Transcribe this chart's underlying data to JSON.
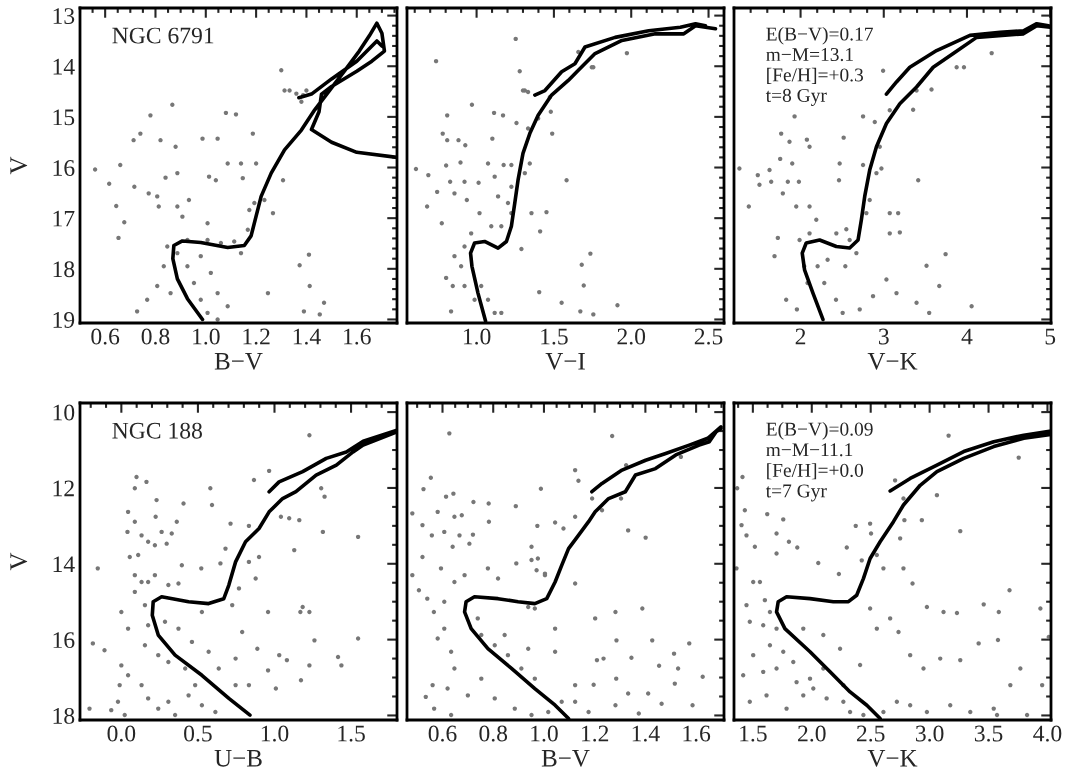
{
  "chart_data": [
    {
      "type": "scatter",
      "xlabel": "B−V",
      "ylabel": "V",
      "xlim": [
        0.5,
        1.76
      ],
      "ylim": [
        19.07,
        12.85
      ],
      "xticks": [
        0.6,
        0.8,
        {
          "value": 1,
          "label": "1.0"
        },
        1.2,
        1.4,
        1.6
      ],
      "yticks": [
        13,
        14,
        15,
        16,
        17,
        18,
        19
      ],
      "annotations": [
        "NGC 6791"
      ],
      "series": [
        {
          "type": "scatter",
          "color": "#777777",
          "marker": "circle",
          "x": [
            0.56,
            0.616,
            0.66,
            0.644,
            0.653,
            0.676,
            0.713,
            0.716,
            0.74,
            0.78,
            0.773,
            0.82,
            0.813,
            0.867,
            0.84,
            0.88,
            0.887,
            0.933,
            0.987,
            1.013,
            1.04,
            1.08,
            1.12,
            1.147,
            1.187,
            1.087,
            1.14,
            1.2,
            1.3,
            1.307,
            1.313,
            1.333,
            1.36,
            1.387,
            1.4,
            1.38,
            1.267,
            1.373,
            1.41,
            1.413,
            1.247,
            1.47,
            1.39,
            1.453,
            0.887,
            0.927,
            0.953,
            0.98,
            1.007,
            1.047,
            0.927,
            1.007,
            1.06,
            1.113,
            1.14,
            0.847,
            0.833,
            0.807,
            0.86,
            0.98,
            1.02,
            1.047,
            1.087,
            0.767,
            0.727,
            0.807,
            0.887,
            0.907,
            1.007,
            1.167,
            1.193,
            1.233,
            1.173,
            1.047
          ],
          "values": [
            16.04,
            16.32,
            15.95,
            16.76,
            17.39,
            17.08,
            15.46,
            16.38,
            15.33,
            14.97,
            16.51,
            15.46,
            16.77,
            14.76,
            16.2,
            15.59,
            16.11,
            16.64,
            15.43,
            16.18,
            16.25,
            14.92,
            14.95,
            16.21,
            15.33,
            15.92,
            15.92,
            15.92,
            14.08,
            16.25,
            14.48,
            14.48,
            14.54,
            14.57,
            14.48,
            14.7,
            16.9,
            17.93,
            17.72,
            18.34,
            18.48,
            18.67,
            18.84,
            18.9,
            17.69,
            17.95,
            18.28,
            18.61,
            18.87,
            19.0,
            17.43,
            17.43,
            17.49,
            17.46,
            17.69,
            17.56,
            17.95,
            18.34,
            18.48,
            17.75,
            18.08,
            18.48,
            18.74,
            18.61,
            18.84,
            16.57,
            16.77,
            16.97,
            17.1,
            17.23,
            16.7,
            16.64,
            16.84,
            15.43
          ]
        },
        {
          "type": "line",
          "color": "#000000",
          "marker": "none",
          "x": [
            0.987,
            0.927,
            0.887,
            0.869,
            0.873,
            0.907,
            0.98,
            1.087,
            1.153,
            1.18,
            1.2,
            1.22,
            1.26,
            1.313,
            1.38,
            1.433,
            1.493,
            1.553,
            1.61,
            1.65,
            1.68,
            1.7,
            1.71,
            1.66,
            1.6,
            1.5,
            1.46,
            1.45,
            1.42,
            1.5,
            1.6,
            1.76,
            null,
            1.37,
            1.42,
            1.5,
            1.6,
            1.68,
            1.7
          ],
          "values": [
            19.0,
            18.59,
            18.2,
            17.8,
            17.54,
            17.45,
            17.48,
            17.58,
            17.54,
            17.35,
            16.96,
            16.57,
            16.11,
            15.65,
            15.26,
            14.86,
            14.47,
            14.08,
            13.7,
            13.4,
            13.15,
            13.35,
            13.7,
            13.9,
            14.1,
            14.4,
            14.55,
            14.9,
            15.25,
            15.5,
            15.7,
            15.8,
            null,
            14.62,
            14.55,
            14.25,
            13.9,
            13.5,
            13.6
          ]
        }
      ]
    },
    {
      "type": "scatter",
      "xlabel": "V−I",
      "xlim": [
        0.55,
        2.6
      ],
      "ylim": [
        19.07,
        12.85
      ],
      "xticks": [
        {
          "value": 1,
          "label": "1.0"
        },
        1.5,
        {
          "value": 2,
          "label": "2.0"
        },
        2.5
      ],
      "yticks": [
        13,
        14,
        15,
        16,
        17,
        18,
        19
      ],
      "tick_labels": "x",
      "series": [
        {
          "type": "scatter",
          "color": "#777777",
          "marker": "circle",
          "x": [
            0.608,
            0.738,
            0.688,
            0.68,
            0.745,
            0.781,
            0.81,
            0.803,
            0.775,
            0.81,
            0.829,
            0.857,
            0.883,
            0.896,
            0.922,
            0.927,
            0.937,
            0.97,
            1.013,
            1.019,
            1.074,
            1.102,
            1.113,
            1.171,
            1.117,
            1.175,
            1.139,
            1.225,
            1.258,
            1.253,
            1.279,
            1.312,
            1.333,
            1.344,
            1.355,
            1.398,
            1.411,
            1.452,
            1.474,
            1.48,
            1.489,
            1.582,
            1.658,
            1.745,
            1.755,
            1.972,
            1.68,
            1.736,
            1.693,
            1.55,
            1.405,
            1.671,
            1.755,
            1.911,
            1.29,
            1.312,
            1.225,
            1.3,
            1.333,
            0.965,
            0.922,
            0.9,
            0.922,
            0.987,
            1.03,
            1.074,
            1.117,
            1.16,
            0.846,
            0.803,
            0.835,
            0.857,
            1.095,
            1.16,
            1.203,
            1.225
          ],
          "values": [
            16.03,
            13.9,
            16.15,
            16.77,
            16.48,
            15.33,
            14.97,
            15.96,
            17.1,
            15.46,
            16.28,
            16.51,
            15.46,
            15.9,
            16.28,
            15.56,
            16.64,
            14.76,
            16.3,
            16.9,
            15.92,
            15.43,
            14.92,
            14.97,
            16.18,
            15.95,
            16.57,
            15.95,
            15.12,
            13.46,
            14.1,
            14.48,
            15.23,
            15.92,
            16.9,
            15.03,
            17.26,
            16.88,
            14.61,
            14.9,
            15.33,
            16.25,
            13.72,
            14.02,
            14.02,
            13.74,
            17.92,
            17.7,
            18.33,
            18.67,
            18.46,
            18.84,
            18.9,
            18.72,
            17.61,
            16.11,
            16.9,
            14.48,
            14.51,
            17.3,
            17.56,
            17.95,
            18.34,
            18.61,
            18.34,
            18.61,
            18.87,
            18.87,
            18.34,
            18.18,
            18.84,
            17.75,
            17.16,
            17.16,
            16.7,
            16.38
          ]
        },
        {
          "type": "line",
          "color": "#000000",
          "marker": "none",
          "x": [
            1.058,
            1.009,
            0.97,
            0.961,
            0.987,
            1.052,
            1.139,
            1.193,
            1.225,
            1.247,
            1.268,
            1.3,
            1.344,
            1.398,
            1.485,
            1.593,
            1.658,
            1.766,
            1.94,
            2.156,
            2.34,
            2.416,
            2.545,
            null,
            1.377,
            1.442,
            1.55,
            1.636,
            1.701,
            1.896,
            2.113,
            2.318,
            2.416,
            2.48
          ],
          "values": [
            19.03,
            18.48,
            17.95,
            17.69,
            17.49,
            17.46,
            17.59,
            17.46,
            17.16,
            16.7,
            16.25,
            15.72,
            15.33,
            14.97,
            14.57,
            14.28,
            14.08,
            13.75,
            13.49,
            13.36,
            13.36,
            13.2,
            13.26,
            null,
            14.57,
            14.48,
            14.11,
            13.95,
            13.62,
            13.43,
            13.3,
            13.23,
            13.16,
            13.2
          ]
        }
      ]
    },
    {
      "type": "scatter",
      "xlabel": "V−K",
      "xlim": [
        1.2,
        5.01
      ],
      "ylim": [
        19.07,
        12.85
      ],
      "xticks": [
        2,
        3,
        4,
        5
      ],
      "yticks": [
        13,
        14,
        15,
        16,
        17,
        18,
        19
      ],
      "tick_labels": "x",
      "annotations": [
        "E(B−V)=0.17",
        "m−M=13.1",
        "[Fe/H]=+0.3",
        "t=8 Gyr"
      ],
      "series": [
        {
          "type": "scatter",
          "color": "#777777",
          "marker": "circle",
          "x": [
            1.378,
            1.486,
            1.506,
            1.627,
            1.647,
            1.687,
            1.767,
            1.755,
            1.727,
            1.787,
            1.847,
            1.867,
            1.9,
            1.928,
            1.948,
            1.98,
            2.076,
            2.108,
            2.108,
            2.189,
            2.47,
            2.462,
            2.518,
            2.55,
            2.538,
            2.671,
            2.751,
            2.751,
            2.892,
            2.972,
            2.992,
            3.072,
            3.072,
            3.173,
            3.193,
            3.353,
            3.394,
            3.414,
            3.514,
            3.574,
            3.667,
            3.743,
            3.876,
            3.964,
            4.056,
            4.297,
            3.546,
            3.394,
            3.153,
            3.032,
            2.871,
            2.711,
            1.827,
            1.956,
            2.044,
            2.084,
            2.205,
            2.285,
            2.426,
            2.506,
            2.325,
            1.988,
            2.108,
            2.43,
            2.59,
            2.791,
            2.831,
            2.912,
            2.952,
            3.072,
            1.265
          ],
          "values": [
            16.77,
            16.15,
            16.34,
            16.05,
            16.28,
            17.75,
            15.33,
            15.83,
            17.39,
            16.51,
            16.28,
            15.49,
            15.92,
            14.99,
            16.77,
            16.28,
            15.45,
            15.59,
            16.77,
            17.03,
            15.92,
            16.25,
            15.41,
            17.22,
            17.95,
            17.69,
            14.99,
            15.95,
            15.1,
            16.02,
            14.09,
            16.9,
            17.3,
            16.9,
            17.28,
            14.86,
            14.48,
            16.25,
            17.94,
            14.46,
            18.34,
            17.71,
            14.02,
            14.02,
            18.74,
            13.74,
            18.87,
            18.67,
            18.48,
            18.21,
            18.54,
            18.8,
            18.61,
            18.8,
            17.95,
            18.28,
            17.95,
            18.28,
            18.61,
            18.87,
            17.82,
            17.43,
            17.3,
            17.3,
            17.43,
            16.9,
            16.64,
            16.11,
            15.59,
            14.87,
            16.02
          ]
        },
        {
          "type": "line",
          "color": "#000000",
          "marker": "none",
          "x": [
            2.269,
            2.149,
            2.048,
            2.02,
            2.068,
            2.229,
            2.43,
            2.59,
            2.691,
            2.731,
            2.771,
            2.831,
            2.912,
            3.032,
            3.193,
            3.394,
            3.594,
            3.835,
            4.116,
            4.679,
            4.839,
            5.0,
            null,
            3.032,
            3.153,
            3.313,
            3.635,
            4.036,
            4.398,
            4.679,
            4.839,
            4.98
          ],
          "values": [
            19.0,
            18.48,
            18.02,
            17.69,
            17.49,
            17.43,
            17.56,
            17.59,
            17.43,
            17.03,
            16.57,
            16.05,
            15.59,
            15.13,
            14.74,
            14.41,
            14.02,
            13.75,
            13.43,
            13.36,
            13.2,
            13.23,
            null,
            14.55,
            14.31,
            14.02,
            13.69,
            13.39,
            13.33,
            13.3,
            13.16,
            13.2
          ]
        }
      ]
    },
    {
      "type": "scatter",
      "xlabel": "U−B",
      "ylabel": "V",
      "xlim": [
        -0.27,
        1.8
      ],
      "ylim": [
        18.12,
        9.76
      ],
      "xticks": [
        {
          "value": 0,
          "label": "0.0"
        },
        0.5,
        {
          "value": 1,
          "label": "1.0"
        },
        1.5
      ],
      "yticks": [
        10,
        12,
        14,
        16,
        18
      ],
      "annotations": [
        "NGC 188"
      ],
      "series": [
        {
          "type": "scatter",
          "color": "#777777",
          "marker": "circle",
          "x": [
            -0.154,
            -0.208,
            -0.11,
            -0.186,
            0.099,
            0.088,
            0.164,
            0.044,
            0.088,
            0.04,
            0.132,
            0.175,
            0.219,
            0.055,
            0.11,
            0.088,
            0.132,
            0.175,
            0.088,
            0.219,
            0.23,
            0.224,
            0.263,
            0.296,
            0.329,
            0.307,
            0.373,
            0.395,
            0.362,
            0.406,
            0.522,
            0.581,
            0.592,
            0.647,
            0.68,
            0.713,
            0.768,
            0.833,
            0.866,
            0.833,
            0.877,
            0.899,
            0.888,
            0.789,
            0.724,
            0.746,
            0.746,
            0.833,
            0.965,
            0.958,
            0.958,
            1.009,
            1.031,
            1.081,
            1.042,
            1.096,
            1.129,
            1.162,
            1.169,
            1.184,
            1.228,
            1.228,
            1.261,
            1.305,
            1.316,
            1.327,
            1.173,
            1.415,
            1.437,
            1.546,
            1.546,
            1.228,
            -0.011,
            -0.022,
            -0.066,
            0.022,
            0.0,
            0.044,
            0.132,
            0.175,
            0.241,
            0.307,
            0.351,
            0.439,
            0.526,
            0.614,
            0.482,
            0.417,
            0.307,
            0.241,
            0.154,
            0.175,
            0.285,
            0.373,
            0.461,
            0.57,
            0.636,
            0.526,
            0.154,
            0.044,
            0.0
          ],
          "values": [
            14.12,
            17.82,
            16.28,
            16.1,
            11.71,
            12.01,
            11.84,
            12.63,
            12.89,
            13.16,
            13.25,
            13.42,
            13.51,
            13.82,
            13.77,
            14.3,
            14.48,
            14.48,
            14.74,
            14.3,
            12.32,
            12.76,
            13.16,
            13.47,
            13.2,
            14.56,
            14.52,
            14.04,
            12.89,
            12.41,
            14.12,
            12.01,
            12.45,
            13.99,
            13.6,
            12.94,
            14.65,
            13.0,
            11.79,
            13.95,
            14.39,
            13.82,
            16.24,
            15.8,
            15.09,
            16.5,
            17.2,
            17.2,
            11.55,
            15.27,
            16.81,
            17.29,
            16.41,
            16.54,
            12.76,
            12.8,
            13.64,
            12.85,
            15.27,
            15.14,
            15.27,
            16.68,
            16.02,
            12.01,
            13.16,
            12.23,
            17.07,
            16.46,
            16.68,
            13.29,
            15.97,
            10.61,
            17.2,
            17.64,
            17.86,
            17.99,
            16.68,
            16.94,
            17.2,
            17.55,
            17.82,
            17.64,
            17.99,
            17.47,
            17.73,
            17.91,
            17.2,
            16.76,
            16.59,
            16.41,
            16.15,
            15.62,
            15.53,
            15.71,
            16.06,
            16.32,
            16.76,
            15.27,
            15.09,
            15.71,
            15.27
          ]
        },
        {
          "type": "line",
          "color": "#000000",
          "marker": "none",
          "x": [
            0.84,
            0.702,
            0.526,
            0.351,
            0.241,
            0.202,
            0.208,
            0.263,
            0.439,
            0.57,
            0.669,
            0.702,
            0.746,
            0.811,
            0.899,
            0.965,
            1.053,
            1.14,
            1.272,
            1.404,
            1.513,
            1.579,
            1.8,
            null,
            0.965,
            1.03,
            1.184,
            1.338,
            1.469,
            1.579,
            1.8
          ],
          "values": [
            17.99,
            17.55,
            16.94,
            16.41,
            15.88,
            15.36,
            15.0,
            14.87,
            15.0,
            15.05,
            14.92,
            14.56,
            13.95,
            13.42,
            13.07,
            12.63,
            12.28,
            12.1,
            11.66,
            11.4,
            11.05,
            10.87,
            10.52,
            null,
            12.1,
            11.84,
            11.57,
            11.22,
            11.05,
            10.77,
            10.48
          ]
        }
      ]
    },
    {
      "type": "scatter",
      "xlabel": "B−V",
      "xlim": [
        0.46,
        1.71
      ],
      "ylim": [
        18.12,
        9.76
      ],
      "xticks": [
        0.6,
        0.8,
        {
          "value": 1,
          "label": "1.0"
        },
        1.2,
        1.4,
        1.6
      ],
      "yticks": [
        10,
        12,
        14,
        16,
        18
      ],
      "tick_labels": "x",
      "series": [
        {
          "type": "scatter",
          "color": "#777777",
          "marker": "circle",
          "x": [
            0.627,
            0.481,
            0.554,
            0.525,
            0.614,
            0.643,
            0.647,
            0.676,
            0.581,
            0.521,
            0.558,
            0.607,
            0.64,
            0.667,
            0.72,
            0.706,
            0.722,
            0.782,
            0.783,
            0.889,
            0.988,
            0.974,
            1.044,
            1.077,
            1.123,
            1.136,
            1.123,
            1.19,
            1.229,
            1.269,
            1.324,
            1.304,
            1.332,
            1.401,
            1.54,
            0.521,
            0.594,
            0.647,
            0.687,
            0.779,
            0.819,
            0.891,
            0.951,
            0.971,
            1.004,
            1.123,
            0.951,
            0.976,
            1.004,
            0.481,
            0.507,
            0.54,
            0.566,
            0.607,
            0.607,
            0.581,
            0.634,
            0.647,
            0.561,
            0.534,
            0.567,
            0.634,
            0.62,
            0.7,
            0.753,
            0.806,
            0.885,
            0.951,
            1.017,
            1.07,
            1.123,
            1.176,
            0.739,
            0.753,
            0.806,
            0.858,
            0.911,
            0.964,
            0.845,
            0.938,
            1.044,
            0.964,
            0.938,
            1.044,
            1.202,
            1.282,
            1.286,
            1.209,
            1.235,
            1.345,
            1.388,
            1.427,
            1.454,
            1.513,
            1.529,
            1.573,
            1.123,
            1.196,
            1.285,
            1.332,
            1.411,
            1.464,
            1.516,
            1.586,
            1.626,
            1.282,
            1.374
          ],
          "values": [
            10.56,
            12.67,
            11.73,
            12.03,
            12.23,
            12.15,
            12.76,
            12.72,
            12.63,
            12.98,
            13.25,
            13.16,
            13.55,
            13.25,
            13.23,
            13.47,
            12.37,
            12.41,
            12.89,
            12.48,
            12.02,
            13.0,
            12.91,
            13.07,
            11.53,
            11.81,
            12.76,
            12.28,
            12.59,
            10.63,
            11.4,
            12.28,
            13.12,
            13.31,
            11.18,
            13.82,
            14.12,
            14.48,
            14.3,
            14.12,
            14.39,
            13.99,
            13.9,
            14.17,
            14.26,
            14.52,
            13.55,
            13.86,
            14.3,
            14.3,
            14.7,
            14.92,
            15.27,
            15.0,
            15.71,
            15.97,
            16.32,
            16.76,
            17.2,
            17.51,
            17.82,
            17.99,
            17.29,
            17.47,
            17.03,
            17.55,
            17.82,
            17.99,
            17.91,
            17.64,
            17.64,
            17.91,
            15.44,
            15.88,
            16.15,
            16.41,
            16.76,
            17.03,
            15.88,
            16.24,
            16.32,
            15.18,
            15.14,
            15.71,
            15.44,
            15.27,
            16.02,
            16.54,
            16.5,
            16.48,
            15.18,
            16.02,
            16.69,
            16.37,
            16.76,
            16.1,
            17.2,
            17.19,
            17.03,
            17.42,
            17.42,
            17.69,
            17.16,
            17.73,
            16.98,
            17.73,
            17.95
          ]
        },
        {
          "type": "line",
          "color": "#000000",
          "marker": "none",
          "x": [
            1.097,
            1.044,
            0.964,
            0.872,
            0.779,
            0.713,
            0.687,
            0.693,
            0.726,
            0.819,
            0.898,
            0.964,
            1.011,
            1.044,
            1.07,
            1.097,
            1.136,
            1.176,
            1.202,
            1.255,
            1.321,
            1.361,
            1.44,
            1.52,
            1.612,
            1.652,
            1.679,
            1.698,
            null,
            1.189,
            1.229,
            1.308,
            1.401,
            1.48,
            1.573,
            1.646,
            1.698
          ],
          "values": [
            18.08,
            17.73,
            17.29,
            16.76,
            16.24,
            15.71,
            15.27,
            15.0,
            14.87,
            14.92,
            15.0,
            15.05,
            14.92,
            14.48,
            14.04,
            13.6,
            13.25,
            12.89,
            12.63,
            12.28,
            12.1,
            11.66,
            11.49,
            11.13,
            10.87,
            10.78,
            10.52,
            10.43,
            null,
            12.1,
            11.88,
            11.53,
            11.27,
            11.09,
            10.87,
            10.69,
            10.39
          ]
        }
      ]
    },
    {
      "type": "scatter",
      "xlabel": "V−K",
      "xlim": [
        1.34,
        4.03
      ],
      "ylim": [
        18.12,
        9.76
      ],
      "xticks": [
        1.5,
        {
          "value": 2,
          "label": "2.0"
        },
        2.5,
        {
          "value": 3,
          "label": "3.0"
        },
        3.5,
        {
          "value": 4,
          "label": "4.0"
        }
      ],
      "yticks": [
        10,
        12,
        14,
        16,
        18
      ],
      "tick_labels": "x",
      "annotations": [
        "E(B−V)=0.09",
        "m−M−11.1",
        "[Fe/H]=+0.0",
        "t=7 Gyr"
      ],
      "series": [
        {
          "type": "scatter",
          "color": "#777777",
          "marker": "circle",
          "x": [
            1.412,
            1.367,
            1.432,
            1.404,
            1.446,
            1.517,
            1.622,
            1.701,
            1.758,
            1.806,
            1.877,
            1.701,
            2.373,
            2.495,
            2.503,
            2.707,
            2.75,
            2.778,
            2.786,
            2.934,
            3.062,
            3.161,
            3.26,
            3.756,
            2.297,
            2.055,
            2.23,
            2.424,
            2.552,
            2.608,
            2.778,
            2.855,
            2.977,
            3.118,
            3.232,
            3.459,
            3.587,
            3.678,
            3.94,
            4.011,
            3.58,
            3.416,
            3.26,
            3.09,
            2.948,
            2.835,
            2.736,
            2.665,
            2.552,
            2.495,
            1.361,
            1.503,
            1.56,
            1.602,
            1.446,
            1.474,
            1.588,
            1.645,
            1.701,
            1.645,
            1.758,
            1.503,
            1.588,
            1.701,
            1.843,
            1.871,
            1.985,
            2.098,
            2.013,
            2.126,
            2.268,
            2.325,
            2.438,
            2.608,
            2.722,
            2.835,
            2.977,
            3.175,
            3.345,
            3.544,
            3.572,
            3.685,
            3.827,
            3.955,
            3.77,
            1.418,
            1.474,
            1.616,
            1.786,
            1.928,
            2.268,
            2.41,
            2.24,
            2.098,
            1.928
          ],
          "values": [
            11.71,
            12.01,
            12.59,
            12.98,
            13.25,
            13.55,
            12.69,
            13.2,
            12.83,
            13.42,
            13.57,
            13.73,
            13.0,
            12.94,
            13.2,
            11.8,
            13.33,
            12.28,
            12.85,
            12.85,
            12.19,
            10.62,
            13.14,
            11.2,
            13.57,
            13.98,
            14.27,
            13.91,
            13.77,
            14.12,
            14.12,
            14.52,
            15.14,
            15.27,
            15.3,
            15.07,
            15.27,
            14.7,
            15.18,
            15.93,
            16.01,
            16.1,
            16.54,
            16.5,
            16.76,
            16.41,
            15.8,
            15.44,
            15.71,
            15.18,
            14.12,
            14.48,
            14.48,
            14.96,
            15.09,
            15.53,
            15.62,
            15.27,
            15.71,
            16.15,
            16.32,
            16.41,
            16.85,
            16.76,
            16.59,
            17.12,
            17.03,
            16.76,
            17.29,
            17.55,
            17.64,
            17.91,
            17.99,
            17.91,
            17.64,
            17.73,
            17.91,
            17.73,
            17.91,
            17.82,
            17.99,
            17.2,
            17.99,
            17.2,
            16.76,
            16.94,
            17.64,
            17.47,
            17.82,
            17.47,
            17.2,
            16.67,
            16.24,
            15.88,
            15.71
          ]
        },
        {
          "type": "line",
          "color": "#000000",
          "marker": "none",
          "x": [
            2.58,
            2.467,
            2.325,
            2.155,
            1.985,
            1.772,
            1.701,
            1.715,
            1.786,
            1.985,
            2.183,
            2.311,
            2.381,
            2.438,
            2.495,
            2.58,
            2.693,
            2.778,
            2.92,
            3.062,
            3.289,
            3.544,
            3.799,
            4.03,
            null,
            2.665,
            2.835,
            3.062,
            3.289,
            3.544,
            3.799,
            4.03
          ],
          "values": [
            18.08,
            17.73,
            17.38,
            16.85,
            16.32,
            15.71,
            15.27,
            15.0,
            14.87,
            14.92,
            15.0,
            15.0,
            14.83,
            14.39,
            13.86,
            13.42,
            12.89,
            12.45,
            11.93,
            11.57,
            11.22,
            10.91,
            10.69,
            10.59,
            null,
            12.08,
            11.75,
            11.4,
            11.04,
            10.78,
            10.61,
            10.5
          ]
        }
      ]
    }
  ]
}
